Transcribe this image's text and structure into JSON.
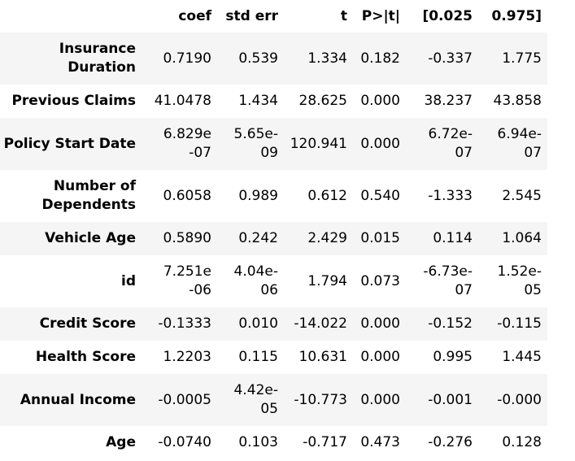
{
  "table": {
    "columns": [
      "",
      "coef",
      "std err",
      "t",
      "P>|t|",
      "[0.025",
      "0.975]"
    ],
    "rows": [
      {
        "label": "Insurance Duration",
        "coef": "0.7190",
        "std_err": "0.539",
        "t": "1.334",
        "p": "0.182",
        "ci_low": "-0.337",
        "ci_high": "1.775"
      },
      {
        "label": "Previous Claims",
        "coef": "41.0478",
        "std_err": "1.434",
        "t": "28.625",
        "p": "0.000",
        "ci_low": "38.237",
        "ci_high": "43.858"
      },
      {
        "label": "Policy Start Date",
        "coef": "6.829e-07",
        "std_err": "5.65e-09",
        "t": "120.941",
        "p": "0.000",
        "ci_low": "6.72e-07",
        "ci_high": "6.94e-07"
      },
      {
        "label": "Number of Dependents",
        "coef": "0.6058",
        "std_err": "0.989",
        "t": "0.612",
        "p": "0.540",
        "ci_low": "-1.333",
        "ci_high": "2.545"
      },
      {
        "label": "Vehicle Age",
        "coef": "0.5890",
        "std_err": "0.242",
        "t": "2.429",
        "p": "0.015",
        "ci_low": "0.114",
        "ci_high": "1.064"
      },
      {
        "label": "id",
        "coef": "7.251e-06",
        "std_err": "4.04e-06",
        "t": "1.794",
        "p": "0.073",
        "ci_low": "-6.73e-07",
        "ci_high": "1.52e-05"
      },
      {
        "label": "Credit Score",
        "coef": "-0.1333",
        "std_err": "0.010",
        "t": "-14.022",
        "p": "0.000",
        "ci_low": "-0.152",
        "ci_high": "-0.115"
      },
      {
        "label": "Health Score",
        "coef": "1.2203",
        "std_err": "0.115",
        "t": "10.631",
        "p": "0.000",
        "ci_low": "0.995",
        "ci_high": "1.445"
      },
      {
        "label": "Annual Income",
        "coef": "-0.0005",
        "std_err": "4.42e-05",
        "t": "-10.773",
        "p": "0.000",
        "ci_low": "-0.001",
        "ci_high": "-0.000"
      },
      {
        "label": "Age",
        "coef": "-0.0740",
        "std_err": "0.103",
        "t": "-0.717",
        "p": "0.473",
        "ci_low": "-0.276",
        "ci_high": "0.128"
      }
    ]
  },
  "colors": {
    "stripe": "#f5f5f5",
    "background": "#ffffff",
    "text": "#000000"
  }
}
